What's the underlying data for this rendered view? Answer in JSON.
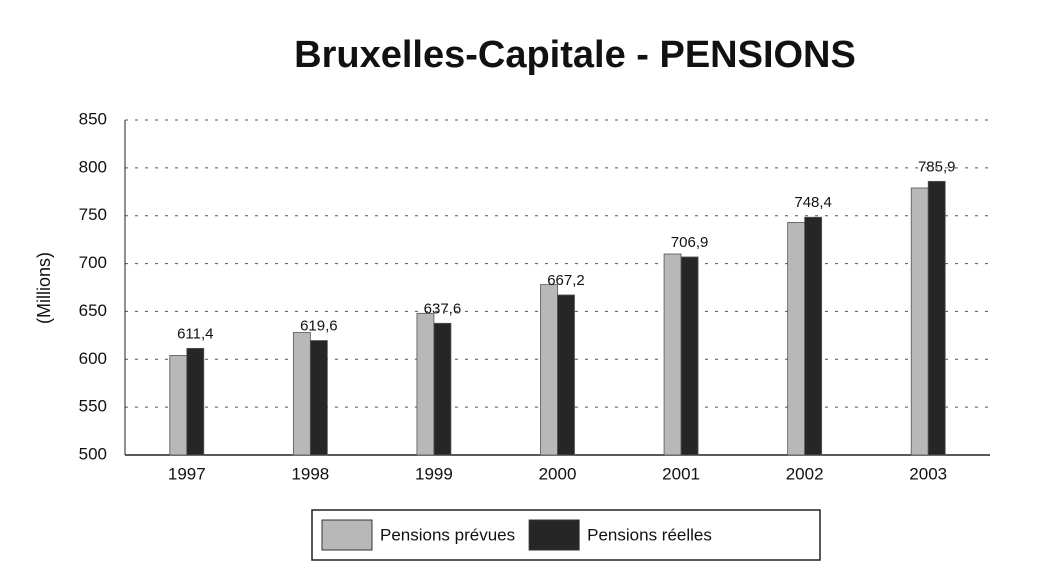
{
  "chart_data": {
    "type": "bar",
    "title": "Bruxelles-Capitale - PENSIONS",
    "y_label": "(Millions)",
    "categories": [
      "1997",
      "1998",
      "1999",
      "2000",
      "2001",
      "2002",
      "2003"
    ],
    "series": [
      {
        "name": "Pensions prévues",
        "color": "#b8b8b8",
        "values": [
          604,
          628,
          648,
          678,
          710,
          743,
          779
        ]
      },
      {
        "name": "Pensions réelles",
        "color": "#262626",
        "values": [
          611.4,
          619.6,
          637.6,
          667.2,
          706.9,
          748.4,
          785.9
        ],
        "value_labels": [
          "611,4",
          "619,6",
          "637,6",
          "667,2",
          "706,9",
          "748,4",
          "785,9"
        ]
      }
    ],
    "ylim": [
      500,
      850
    ],
    "yticks": [
      500,
      550,
      600,
      650,
      700,
      750,
      800,
      850
    ],
    "grid": true,
    "legend": "bottom"
  }
}
